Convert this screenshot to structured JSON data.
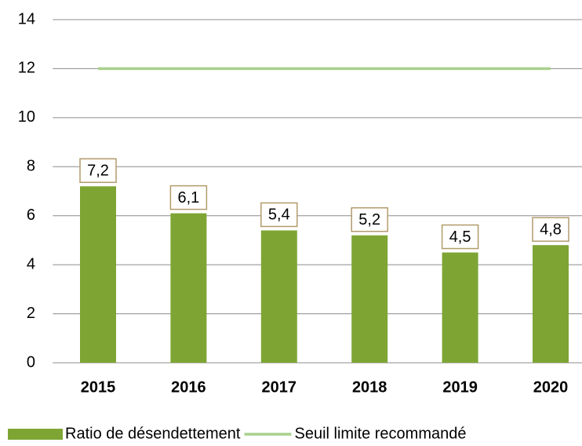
{
  "chart_data": {
    "type": "bar",
    "categories": [
      "2015",
      "2016",
      "2017",
      "2018",
      "2019",
      "2020"
    ],
    "series": [
      {
        "name": "Ratio de désendettement",
        "type": "bar",
        "color": "#7ea534",
        "values": [
          7.2,
          6.1,
          5.4,
          5.2,
          4.5,
          4.8
        ],
        "value_labels": [
          "7,2",
          "6,1",
          "5,4",
          "5,2",
          "4,5",
          "4,8"
        ]
      },
      {
        "name": "Seuil limite recommandé",
        "type": "line",
        "color": "#a9d18e",
        "values": [
          12,
          12,
          12,
          12,
          12,
          12
        ]
      }
    ],
    "ylim": [
      0,
      14
    ],
    "yticks": [
      0,
      2,
      4,
      6,
      8,
      10,
      12,
      14
    ],
    "grid": true,
    "legend": "bottom"
  }
}
